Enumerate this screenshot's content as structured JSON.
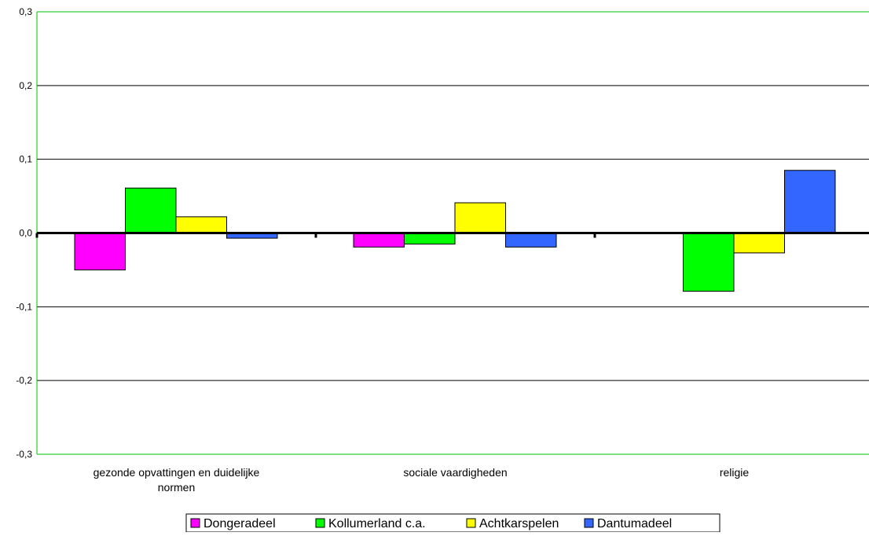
{
  "chart_data": {
    "type": "bar",
    "categories": [
      "gezonde opvattingen en duidelijke normen",
      "sociale vaardigheden",
      "religie"
    ],
    "category_lines": [
      [
        "gezonde opvattingen en duidelijke",
        "normen"
      ],
      [
        "sociale vaardigheden"
      ],
      [
        "religie"
      ]
    ],
    "series": [
      {
        "name": "Dongeradeel",
        "color": "#ff00ff",
        "values": [
          -0.05,
          -0.019,
          0.0
        ]
      },
      {
        "name": "Kollumerland c.a.",
        "color": "#00ff00",
        "values": [
          0.061,
          -0.015,
          -0.079
        ]
      },
      {
        "name": "Achtkarspelen",
        "color": "#ffff00",
        "values": [
          0.022,
          0.041,
          -0.027
        ]
      },
      {
        "name": "Dantumadeel",
        "color": "#3366ff",
        "values": [
          -0.007,
          -0.019,
          0.085
        ]
      }
    ],
    "ylim": [
      -0.3,
      0.3
    ],
    "yticks": [
      0.3,
      0.2,
      0.1,
      0.0,
      -0.1,
      -0.2,
      -0.3
    ],
    "ytick_labels": [
      "0,3",
      "0,2",
      "0,1",
      "0,0",
      "-0,1",
      "-0,2",
      "-0,3"
    ],
    "title": "",
    "xlabel": "",
    "ylabel": "",
    "grid": true,
    "legend_position": "bottom-center",
    "colors": {
      "gridline": "#000000",
      "axis_frame": "#00c000",
      "zero_line": "#000000",
      "bar_border": "#000000"
    }
  }
}
